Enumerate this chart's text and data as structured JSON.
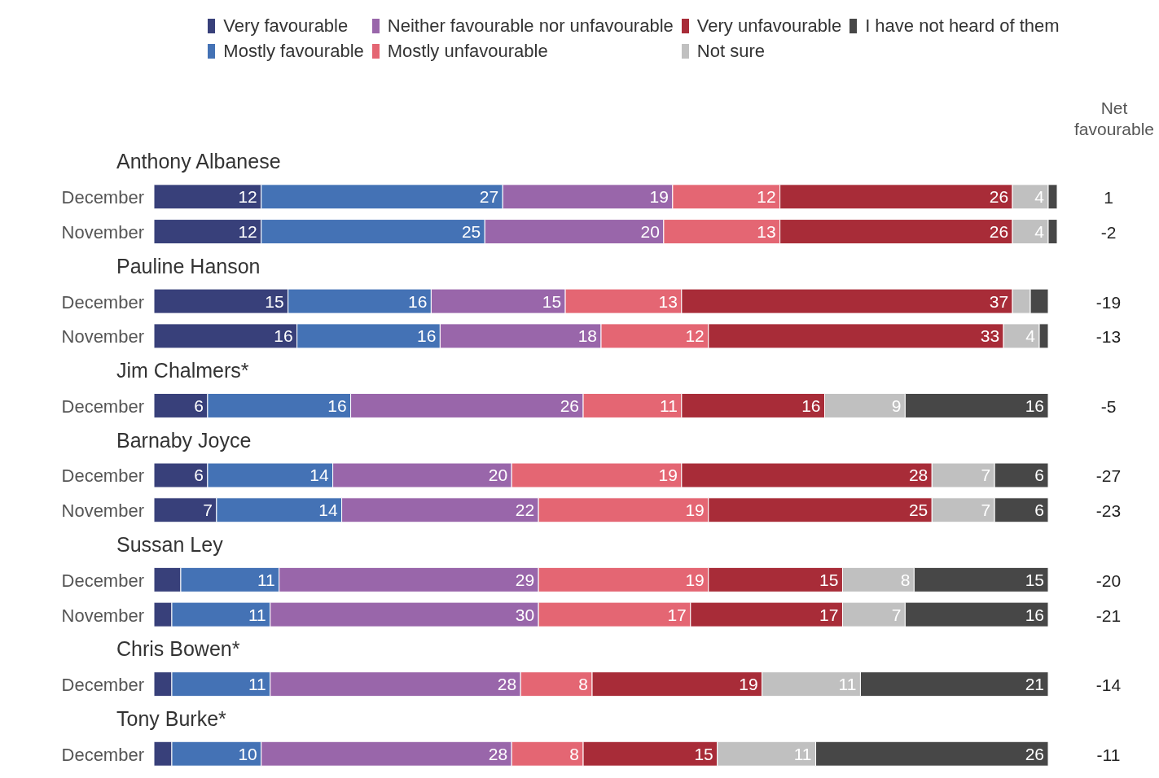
{
  "chart_data": {
    "type": "bar",
    "orientation": "horizontal",
    "stacked": true,
    "legend": "top",
    "categories": [
      "Anthony Albanese",
      "December",
      "November",
      "Pauline Hanson",
      "December",
      "November",
      "Jim Chalmers*",
      "December",
      "Barnaby Joyce",
      "December",
      "November",
      "Sussan Ley",
      "December",
      "November",
      "Chris Bowen*",
      "December",
      "Tony Burke*",
      "December"
    ],
    "series": [
      {
        "name": "Very favourable",
        "color": "#38407a",
        "values": [
          null,
          12,
          12,
          null,
          15,
          16,
          null,
          6,
          null,
          6,
          7,
          null,
          3,
          2,
          null,
          2,
          null,
          2
        ],
        "value_labels": [
          null,
          "12",
          "12",
          null,
          "15",
          "16",
          null,
          "6",
          null,
          "6",
          "7",
          null,
          null,
          null,
          null,
          null,
          null,
          null
        ]
      },
      {
        "name": "Mostly favourable",
        "color": "#4472b5",
        "values": [
          null,
          27,
          25,
          null,
          16,
          16,
          null,
          16,
          null,
          14,
          14,
          null,
          11,
          11,
          null,
          11,
          null,
          10
        ],
        "value_labels": [
          null,
          "27",
          "25",
          null,
          "16",
          "16",
          null,
          "16",
          null,
          "14",
          "14",
          null,
          "11",
          "11",
          null,
          "11",
          null,
          "10"
        ]
      },
      {
        "name": "Neither favourable nor unfavourable",
        "color": "#9966aa",
        "values": [
          null,
          19,
          20,
          null,
          15,
          18,
          null,
          26,
          null,
          20,
          22,
          null,
          29,
          30,
          null,
          28,
          null,
          28
        ],
        "value_labels": [
          null,
          "19",
          "20",
          null,
          "15",
          "18",
          null,
          "26",
          null,
          "20",
          "22",
          null,
          "29",
          "30",
          null,
          "28",
          null,
          "28"
        ]
      },
      {
        "name": "Mostly unfavourable",
        "color": "#e46673",
        "values": [
          null,
          12,
          13,
          null,
          13,
          12,
          null,
          11,
          null,
          19,
          19,
          null,
          19,
          17,
          null,
          8,
          null,
          8
        ],
        "value_labels": [
          null,
          "12",
          "13",
          null,
          "13",
          "12",
          null,
          "11",
          null,
          "19",
          "19",
          null,
          "19",
          "17",
          null,
          "8",
          null,
          "8"
        ]
      },
      {
        "name": "Very unfavourable",
        "color": "#a82c38",
        "values": [
          null,
          26,
          26,
          null,
          37,
          33,
          null,
          16,
          null,
          28,
          25,
          null,
          15,
          17,
          null,
          19,
          null,
          15
        ],
        "value_labels": [
          null,
          "26",
          "26",
          null,
          "37",
          "33",
          null,
          "16",
          null,
          "28",
          "25",
          null,
          "15",
          "17",
          null,
          "19",
          null,
          "15"
        ]
      },
      {
        "name": "Not sure",
        "color": "#c0c0c0",
        "values": [
          null,
          4,
          4,
          null,
          2,
          4,
          null,
          9,
          null,
          7,
          7,
          null,
          8,
          7,
          null,
          11,
          null,
          11
        ],
        "value_labels": [
          null,
          "4",
          "4",
          null,
          null,
          "4",
          null,
          "9",
          null,
          "7",
          "7",
          null,
          "8",
          "7",
          null,
          "11",
          null,
          "11"
        ]
      },
      {
        "name": "I have not heard of them",
        "color": "#474747",
        "values": [
          null,
          1,
          1,
          null,
          2,
          1,
          null,
          16,
          null,
          6,
          6,
          null,
          15,
          16,
          null,
          21,
          null,
          26
        ],
        "value_labels": [
          null,
          null,
          null,
          null,
          null,
          null,
          null,
          "16",
          null,
          "6",
          "6",
          null,
          "15",
          "16",
          null,
          "21",
          null,
          "26"
        ]
      }
    ],
    "annotations": [
      "Net favourable",
      "1",
      "-2",
      "-19",
      "-13",
      "-5",
      "-27",
      "-23",
      "-20",
      "-21",
      "-14",
      "-11"
    ]
  }
}
